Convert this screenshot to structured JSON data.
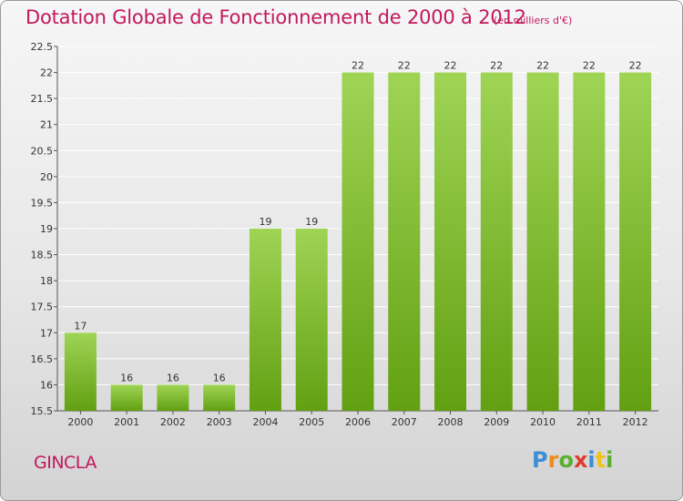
{
  "header": {
    "title": "Dotation Globale de Fonctionnement de 2000 à 2012",
    "subtitle": "(en milliers d'€)"
  },
  "footer": {
    "commune": "GINCLA",
    "logo": {
      "letters": [
        "P",
        "r",
        "o",
        "x",
        "i",
        "t",
        "i"
      ],
      "colors": [
        "#3a8fd6",
        "#f08a1c",
        "#59b030",
        "#e03a2f",
        "#3a8fd6",
        "#f0c21c",
        "#59b030"
      ]
    }
  },
  "chart_data": {
    "type": "bar",
    "title": "Dotation Globale de Fonctionnement de 2000 à 2012",
    "subtitle": "(en milliers d'€)",
    "categories": [
      "2000",
      "2001",
      "2002",
      "2003",
      "2004",
      "2005",
      "2006",
      "2007",
      "2008",
      "2009",
      "2010",
      "2011",
      "2012"
    ],
    "values": [
      17,
      16,
      16,
      16,
      19,
      19,
      22,
      22,
      22,
      22,
      22,
      22,
      22
    ],
    "data_labels": [
      "17",
      "16",
      "16",
      "16",
      "19",
      "19",
      "22",
      "22",
      "22",
      "22",
      "22",
      "22",
      "22"
    ],
    "ylim": [
      15.5,
      22.5
    ],
    "yticks": [
      15.5,
      16,
      16.5,
      17,
      17.5,
      18,
      18.5,
      19,
      19.5,
      20,
      20.5,
      21,
      21.5,
      22,
      22.5
    ],
    "ytick_labels": [
      "15.5",
      "16",
      "16.5",
      "17",
      "17.5",
      "18",
      "18.5",
      "19",
      "19.5",
      "20",
      "20.5",
      "21",
      "21.5",
      "22",
      "22.5"
    ],
    "grid": true,
    "legend": false,
    "colors": {
      "bar_top": "#9fd455",
      "bar_bottom": "#62a012",
      "grid": "#ffffff",
      "text": "#333333"
    }
  }
}
